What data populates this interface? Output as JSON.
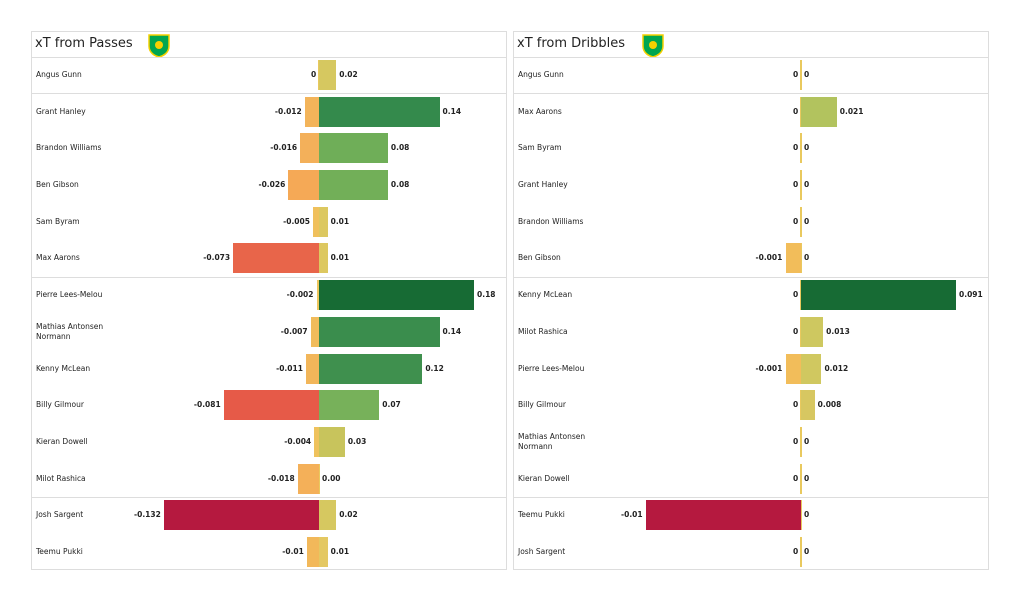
{
  "chart_data": [
    {
      "type": "bar",
      "title": "xT from Passes",
      "categories": [
        "Angus Gunn",
        "Grant Hanley",
        "Brandon Williams",
        "Ben Gibson",
        "Sam Byram",
        "Max Aarons",
        "Pierre Lees-Melou",
        "Mathias  Antonsen Normann",
        "Kenny McLean",
        "Billy Gilmour",
        "Kieran Dowell",
        "Milot Rashica",
        "Josh Sargent",
        "Teemu Pukki"
      ],
      "series": [
        {
          "values": [
            0,
            -0.012,
            -0.016,
            -0.026,
            -0.005,
            -0.073,
            -0.002,
            -0.007,
            -0.011,
            -0.081,
            -0.004,
            -0.018,
            -0.132,
            -0.01
          ],
          "colors": [
            "#e9c95e",
            "#f3b45a",
            "#f3b05a",
            "#f5a956",
            "#f0c05c",
            "#e8654a",
            "#edc65e",
            "#f1bc5b",
            "#f2b65a",
            "#e65a48",
            "#efc25d",
            "#f4b059",
            "#b5193f",
            "#f2b85a"
          ]
        },
        {
          "values": [
            0.02,
            0.14,
            0.08,
            0.08,
            0.01,
            0.01,
            0.18,
            0.14,
            0.12,
            0.07,
            0.03,
            0,
            0.02,
            0.01
          ],
          "value_labels": [
            "0.02",
            "0.14",
            "0.08",
            "0.08",
            "0.01",
            "0.01",
            "0.18",
            "0.14",
            "0.12",
            "0.07",
            "0.03",
            "0.00",
            "0.02",
            "0.01"
          ],
          "colors": [
            "#d6c860",
            "#348a4c",
            "#6fae58",
            "#72af58",
            "#dcc860",
            "#ddc860",
            "#176b34",
            "#3a8d4d",
            "#3f904e",
            "#77b15a",
            "#c8c45c",
            "#e9c95e",
            "#d6c860",
            "#e4c862"
          ]
        }
      ]
    },
    {
      "type": "bar",
      "title": "xT from Dribbles",
      "categories": [
        "Angus Gunn",
        "Max Aarons",
        "Sam Byram",
        "Grant Hanley",
        "Brandon Williams",
        "Ben Gibson",
        "Kenny McLean",
        "Milot Rashica",
        "Pierre Lees-Melou",
        "Billy Gilmour",
        "Mathias  Antonsen Normann",
        "Kieran Dowell",
        "Teemu Pukki",
        "Josh Sargent"
      ],
      "series": [
        {
          "values": [
            0,
            0,
            0,
            0,
            0,
            -0.001,
            0,
            0,
            -0.001,
            0,
            0,
            0,
            -0.01,
            0
          ],
          "colors": [
            "#e9c95e",
            "#e9c95e",
            "#e9c95e",
            "#e9c95e",
            "#e9c95e",
            "#f2bd5a",
            "#e9c95e",
            "#e9c95e",
            "#f2bd5a",
            "#e9c95e",
            "#e9c95e",
            "#e9c95e",
            "#b5193f",
            "#e9c95e"
          ]
        },
        {
          "values": [
            0,
            0.021,
            0,
            0,
            0,
            0,
            0.091,
            0.013,
            0.012,
            0.008,
            0,
            0,
            0,
            0
          ],
          "colors": [
            "#e9c95e",
            "#b2c35e",
            "#e9c95e",
            "#e9c95e",
            "#e9c95e",
            "#e9c95e",
            "#176b34",
            "#cec860",
            "#d0c860",
            "#d7c761",
            "#e9c95e",
            "#e9c95e",
            "#e9c95e",
            "#e9c95e"
          ]
        }
      ]
    }
  ]
}
